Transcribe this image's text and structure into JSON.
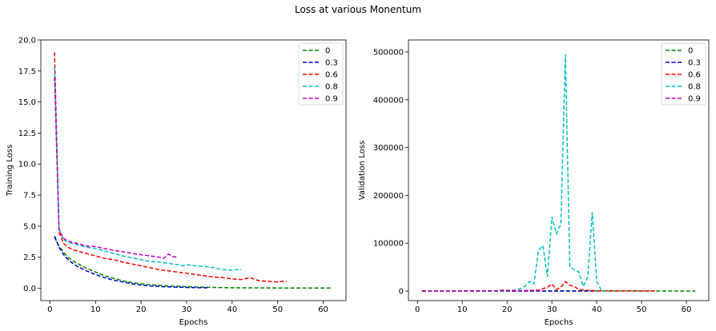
{
  "figure": {
    "title": "Loss at various Monentum"
  },
  "chart_data": [
    {
      "type": "line",
      "xlabel": "Epochs",
      "ylabel": "Training Loss",
      "xlim": [
        -2,
        65
      ],
      "ylim": [
        -1,
        20
      ],
      "xticks": [
        "0",
        "10",
        "20",
        "30",
        "40",
        "50",
        "60"
      ],
      "yticks": [
        "0.0",
        "2.5",
        "5.0",
        "7.5",
        "10.0",
        "12.5",
        "15.0",
        "17.5",
        "20.0"
      ],
      "legend_position": "top-right",
      "grid": false,
      "series": [
        {
          "name": "0",
          "color": "#008000",
          "points": [
            [
              1,
              4.1
            ],
            [
              2,
              3.4
            ],
            [
              3,
              2.9
            ],
            [
              4,
              2.5
            ],
            [
              5,
              2.2
            ],
            [
              6,
              2.0
            ],
            [
              8,
              1.6
            ],
            [
              10,
              1.3
            ],
            [
              12,
              1.0
            ],
            [
              14,
              0.8
            ],
            [
              16,
              0.6
            ],
            [
              18,
              0.45
            ],
            [
              20,
              0.35
            ],
            [
              25,
              0.2
            ],
            [
              30,
              0.12
            ],
            [
              35,
              0.07
            ],
            [
              40,
              0.04
            ],
            [
              50,
              0.02
            ],
            [
              62,
              0.01
            ]
          ]
        },
        {
          "name": "0.3",
          "color": "#0000cc",
          "points": [
            [
              1,
              4.2
            ],
            [
              2,
              3.3
            ],
            [
              3,
              2.7
            ],
            [
              4,
              2.3
            ],
            [
              5,
              2.0
            ],
            [
              6,
              1.75
            ],
            [
              8,
              1.4
            ],
            [
              10,
              1.1
            ],
            [
              12,
              0.85
            ],
            [
              14,
              0.65
            ],
            [
              16,
              0.5
            ],
            [
              18,
              0.35
            ],
            [
              20,
              0.25
            ],
            [
              22,
              0.18
            ],
            [
              25,
              0.12
            ],
            [
              28,
              0.08
            ],
            [
              30,
              0.06
            ],
            [
              33,
              0.04
            ],
            [
              35,
              0.03
            ]
          ]
        },
        {
          "name": "0.6",
          "color": "#ff0000",
          "points": [
            [
              1,
              19.0
            ],
            [
              2,
              4.5
            ],
            [
              3,
              3.6
            ],
            [
              4,
              3.3
            ],
            [
              5,
              3.1
            ],
            [
              6,
              3.0
            ],
            [
              8,
              2.8
            ],
            [
              10,
              2.6
            ],
            [
              12,
              2.4
            ],
            [
              14,
              2.3
            ],
            [
              16,
              2.1
            ],
            [
              18,
              1.95
            ],
            [
              20,
              1.8
            ],
            [
              22,
              1.65
            ],
            [
              24,
              1.5
            ],
            [
              26,
              1.4
            ],
            [
              28,
              1.3
            ],
            [
              30,
              1.2
            ],
            [
              32,
              1.1
            ],
            [
              34,
              1.0
            ],
            [
              36,
              0.9
            ],
            [
              38,
              0.85
            ],
            [
              40,
              0.75
            ],
            [
              42,
              0.7
            ],
            [
              44,
              0.85
            ],
            [
              45,
              0.7
            ],
            [
              46,
              0.6
            ],
            [
              48,
              0.55
            ],
            [
              50,
              0.5
            ],
            [
              51,
              0.55
            ],
            [
              52,
              0.55
            ]
          ]
        },
        {
          "name": "0.8",
          "color": "#00bfbf",
          "points": [
            [
              1,
              17.8
            ],
            [
              2,
              4.8
            ],
            [
              3,
              3.9
            ],
            [
              4,
              3.7
            ],
            [
              6,
              3.5
            ],
            [
              8,
              3.3
            ],
            [
              10,
              3.2
            ],
            [
              12,
              3.0
            ],
            [
              14,
              2.8
            ],
            [
              16,
              2.6
            ],
            [
              18,
              2.45
            ],
            [
              20,
              2.3
            ],
            [
              22,
              2.15
            ],
            [
              24,
              2.1
            ],
            [
              26,
              2.0
            ],
            [
              28,
              1.9
            ],
            [
              29,
              1.8
            ],
            [
              30,
              1.9
            ],
            [
              32,
              1.8
            ],
            [
              34,
              1.75
            ],
            [
              36,
              1.65
            ],
            [
              38,
              1.5
            ],
            [
              40,
              1.45
            ],
            [
              41,
              1.5
            ],
            [
              42,
              1.5
            ]
          ]
        },
        {
          "name": "0.9",
          "color": "#bf00bf",
          "points": [
            [
              1,
              17.0
            ],
            [
              2,
              4.7
            ],
            [
              3,
              4.0
            ],
            [
              4,
              3.8
            ],
            [
              6,
              3.6
            ],
            [
              8,
              3.4
            ],
            [
              10,
              3.35
            ],
            [
              12,
              3.2
            ],
            [
              14,
              3.05
            ],
            [
              16,
              2.95
            ],
            [
              18,
              2.8
            ],
            [
              20,
              2.7
            ],
            [
              22,
              2.6
            ],
            [
              24,
              2.5
            ],
            [
              25,
              2.4
            ],
            [
              26,
              2.75
            ],
            [
              27,
              2.55
            ],
            [
              28,
              2.5
            ]
          ]
        }
      ]
    },
    {
      "type": "line",
      "xlabel": "Epochs",
      "ylabel": "Validation Loss",
      "xlim": [
        -2,
        65
      ],
      "ylim": [
        -20000,
        525000
      ],
      "xticks": [
        "0",
        "10",
        "20",
        "30",
        "40",
        "50",
        "60"
      ],
      "yticks": [
        "0",
        "100000",
        "200000",
        "300000",
        "400000",
        "500000"
      ],
      "legend_position": "top-right",
      "grid": false,
      "series": [
        {
          "name": "0",
          "color": "#008000",
          "points": [
            [
              1,
              0
            ],
            [
              10,
              0
            ],
            [
              20,
              0
            ],
            [
              30,
              0
            ],
            [
              40,
              0
            ],
            [
              50,
              0
            ],
            [
              62,
              0
            ]
          ]
        },
        {
          "name": "0.3",
          "color": "#0000cc",
          "points": [
            [
              1,
              0
            ],
            [
              10,
              0
            ],
            [
              20,
              0
            ],
            [
              30,
              0
            ],
            [
              35,
              0
            ],
            [
              40,
              0
            ]
          ]
        },
        {
          "name": "0.6",
          "color": "#ff0000",
          "points": [
            [
              1,
              0
            ],
            [
              10,
              0
            ],
            [
              18,
              500
            ],
            [
              19,
              2000
            ],
            [
              20,
              1000
            ],
            [
              25,
              800
            ],
            [
              27,
              2000
            ],
            [
              29,
              8000
            ],
            [
              30,
              15000
            ],
            [
              31,
              3000
            ],
            [
              32,
              8000
            ],
            [
              33,
              20000
            ],
            [
              34,
              12000
            ],
            [
              35,
              10000
            ],
            [
              36,
              3000
            ],
            [
              38,
              1500
            ],
            [
              40,
              500
            ],
            [
              45,
              500
            ],
            [
              52,
              200
            ],
            [
              53,
              200
            ]
          ]
        },
        {
          "name": "0.8",
          "color": "#00bfbf",
          "points": [
            [
              1,
              0
            ],
            [
              18,
              0
            ],
            [
              20,
              1000
            ],
            [
              22,
              2000
            ],
            [
              23,
              5000
            ],
            [
              24,
              10000
            ],
            [
              25,
              20000
            ],
            [
              26,
              15000
            ],
            [
              27,
              85000
            ],
            [
              28,
              95000
            ],
            [
              29,
              30000
            ],
            [
              30,
              155000
            ],
            [
              31,
              120000
            ],
            [
              32,
              140000
            ],
            [
              33,
              495000
            ],
            [
              34,
              50000
            ],
            [
              35,
              45000
            ],
            [
              36,
              40000
            ],
            [
              37,
              10000
            ],
            [
              38,
              30000
            ],
            [
              39,
              165000
            ],
            [
              40,
              20000
            ],
            [
              41,
              2000
            ],
            [
              42,
              0
            ]
          ]
        },
        {
          "name": "0.9",
          "color": "#bf00bf",
          "points": [
            [
              1,
              0
            ],
            [
              10,
              0
            ],
            [
              18,
              500
            ],
            [
              20,
              1500
            ],
            [
              22,
              1000
            ],
            [
              24,
              800
            ],
            [
              25,
              2000
            ],
            [
              26,
              1000
            ],
            [
              28,
              500
            ]
          ]
        }
      ]
    }
  ]
}
